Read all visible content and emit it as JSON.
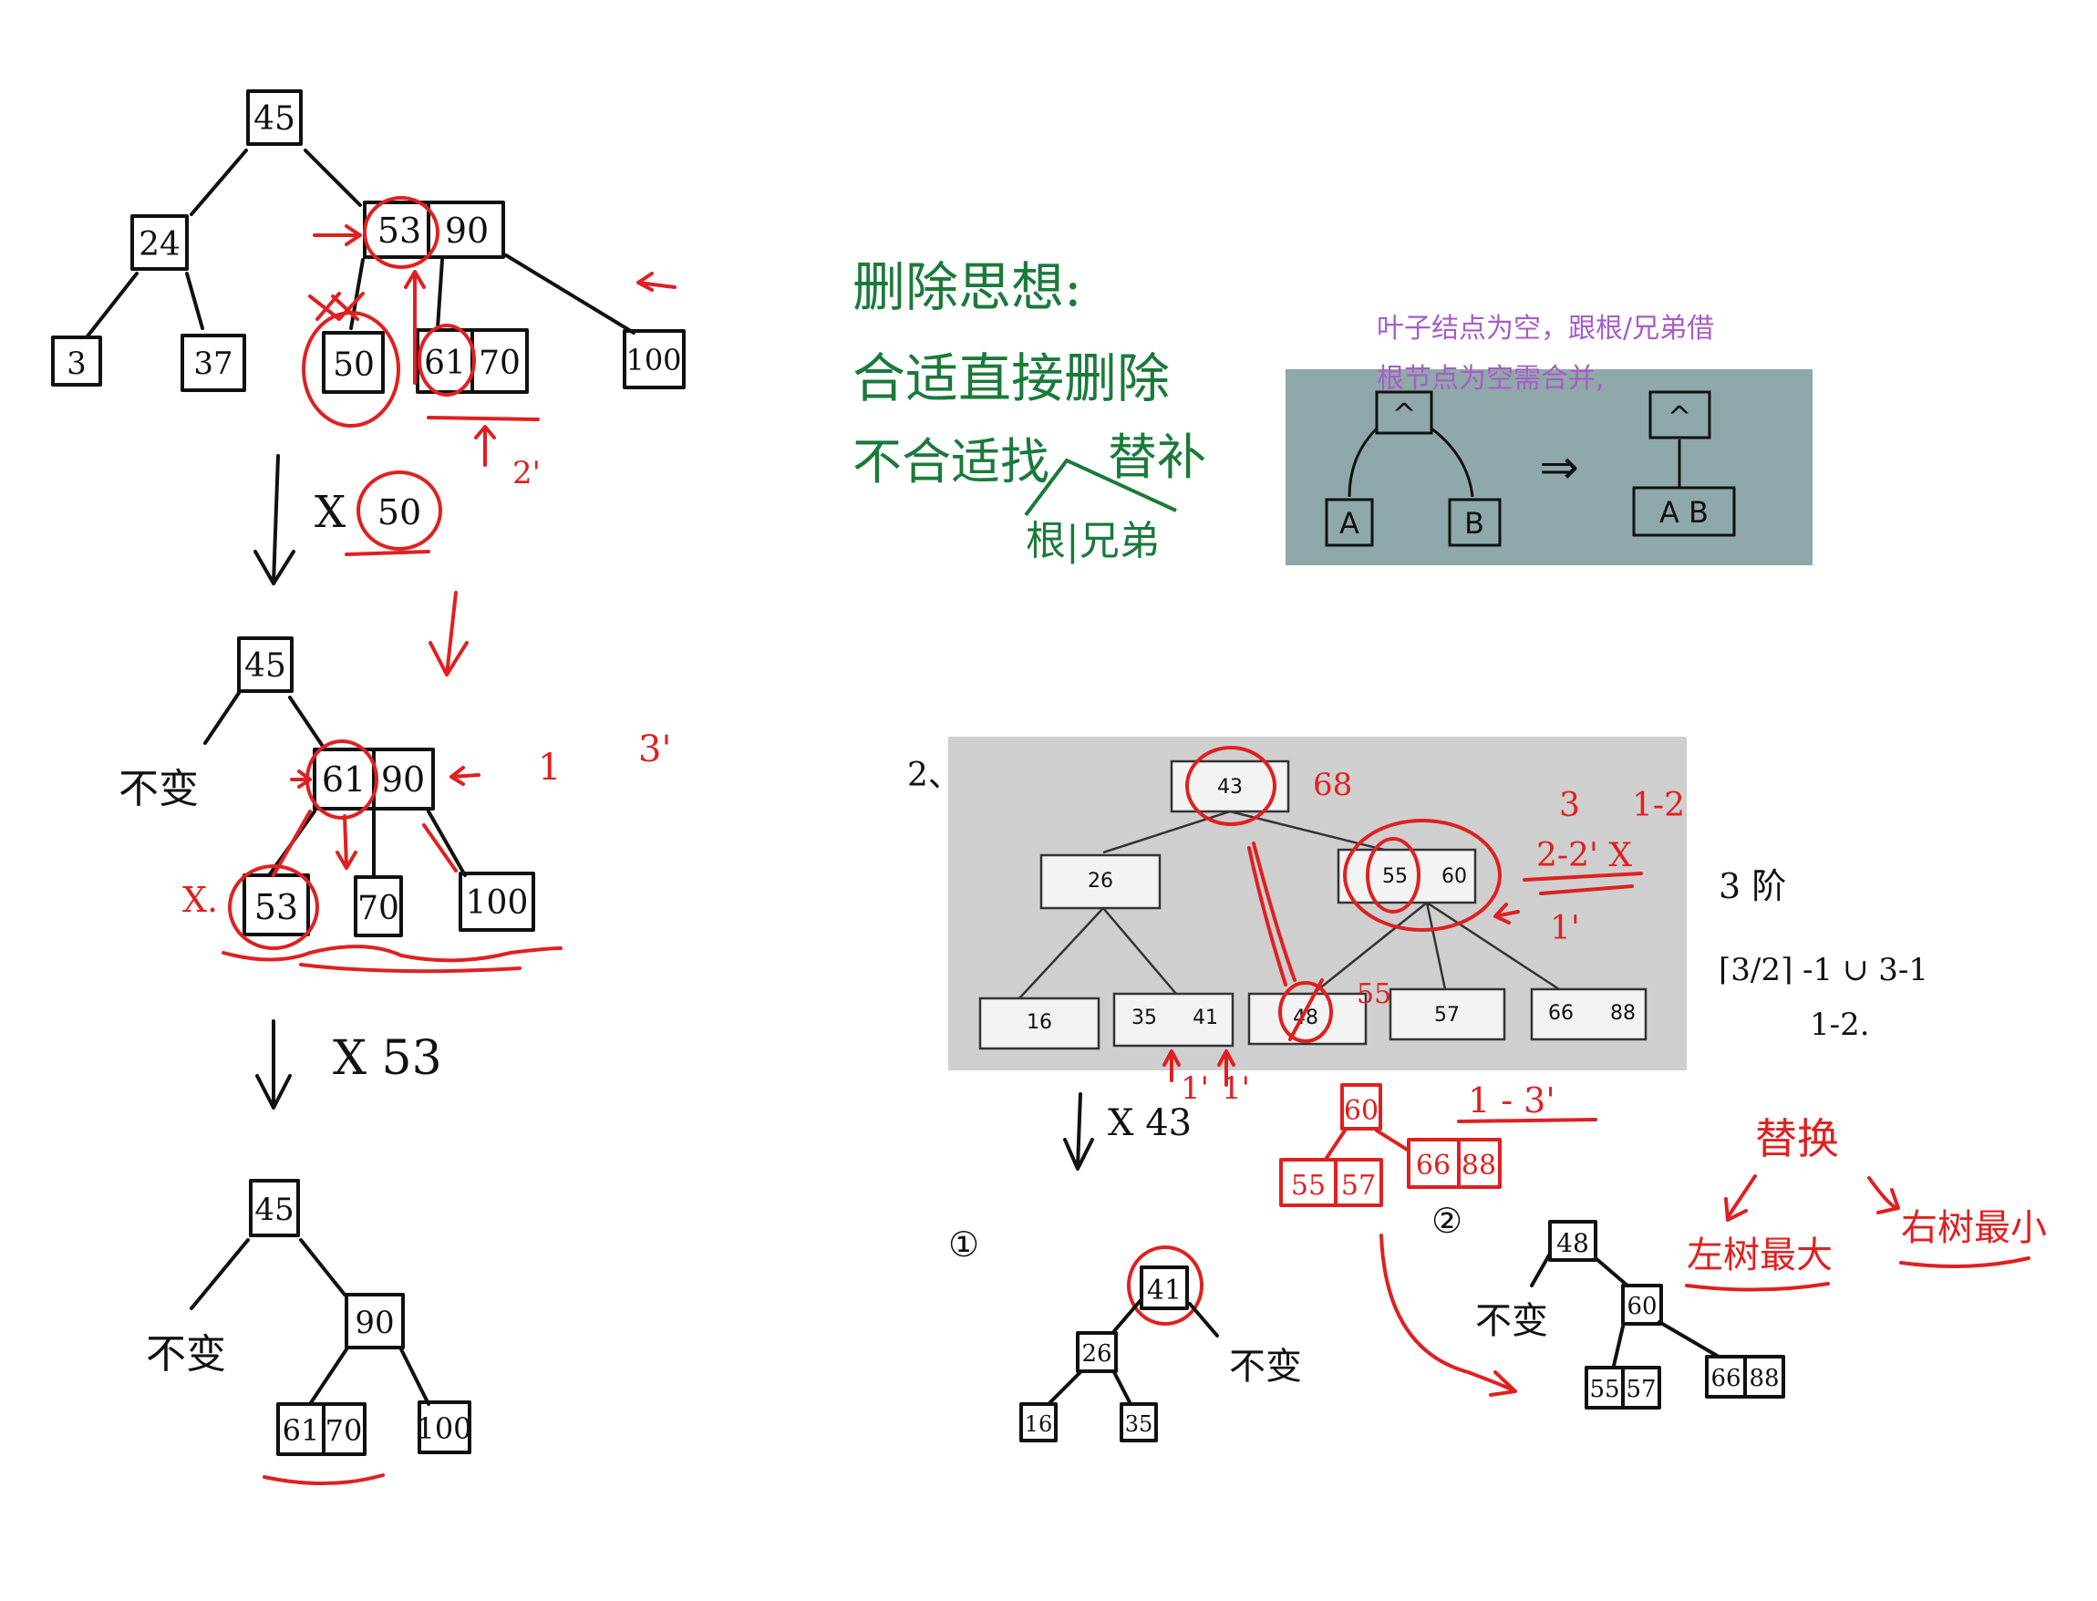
{
  "left": {
    "t1": {
      "root": "45",
      "l": "24",
      "r1": "53",
      "r2": "90",
      "ll": "3",
      "lr": "37",
      "m1": "50",
      "m2a": "61",
      "m2b": "70",
      "rr": "100",
      "note": "2'"
    },
    "step1": {
      "op": "X",
      "val": "50"
    },
    "t2": {
      "root": "45",
      "side": "不变",
      "r1": "61",
      "r2": "90",
      "a": "53",
      "b": "70",
      "c": "100",
      "x": "X.",
      "n1": "1",
      "n2": "3'"
    },
    "step2": {
      "op": "X 53"
    },
    "t3": {
      "root": "45",
      "side": "不变",
      "r": "90",
      "a1": "61",
      "a2": "70",
      "b": "100"
    }
  },
  "notes": {
    "title": "删除思想:",
    "line1": "合适直接删除",
    "line2": "不合适找",
    "line2b": "替补",
    "line3": "根|兄弟",
    "purple1": "叶子结点为空，跟根/兄弟借",
    "purple2": "根节点为空需合并,"
  },
  "merge": {
    "a": "A",
    "b": "B",
    "top": "^",
    "ab": "A B",
    "arrow": "⇒"
  },
  "book": {
    "label": "2、",
    "root": "43",
    "l": "26",
    "r1": "55",
    "r2": "60",
    "leaves": [
      "16",
      "35",
      "41",
      "48",
      "57",
      "66",
      "88"
    ],
    "red_root_note": "68",
    "red_48_note": "55",
    "n3": "3",
    "n12": "1-2",
    "n22": "2-2' X",
    "n1p": "1'"
  },
  "side": {
    "order": "3 阶",
    "formula": "⌈3/2⌉ -1 ∪ 3-1",
    "range": "1-2."
  },
  "bottom": {
    "op": "X 43",
    "p1": "1'",
    "p2": "1'",
    "sub": {
      "top": "60",
      "l": "55",
      "r": "57",
      "rr1": "66",
      "rr2": "88",
      "note": "1 - 3'"
    },
    "c1": "①",
    "c2": "②",
    "t1": {
      "root": "41",
      "l": "26",
      "ll": "16",
      "lr": "35",
      "side": "不变"
    },
    "t2": {
      "root": "48",
      "side": "不变",
      "r": "60",
      "a1": "55",
      "a2": "57",
      "b1": "66",
      "b2": "88"
    },
    "replace": "替换",
    "left_max": "左树最大",
    "right_min": "右树最小"
  }
}
